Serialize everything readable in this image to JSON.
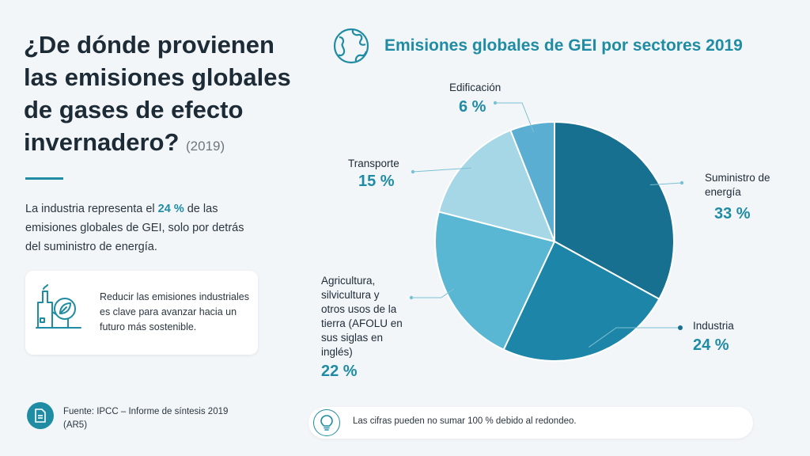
{
  "left": {
    "title": "¿De dónde provienen las emisiones globales de gases de efecto invernadero?",
    "title_year": "(2019)",
    "summary_before": "La industria representa el ",
    "summary_highlight": "24 %",
    "summary_after": " de las emisiones globales de GEI, solo por detrás del suministro de energía.",
    "card_text": "Reducir las emisiones industriales es clave para avanzar hacia un futuro más sostenible.",
    "source": "Fuente: IPCC – Informe de síntesis 2019 (AR5)"
  },
  "note": "Las cifras pueden no sumar 100 % debido al redondeo.",
  "colors": {
    "accent": "#1f8ca3",
    "text": "#1d2b36",
    "background": "#f3f6f9"
  },
  "icons": {
    "title_icon": "globe-icon",
    "card_icon": "factory-leaf-icon",
    "source_icon": "document-icon",
    "note_icon": "lightbulb-icon"
  },
  "chart_data": {
    "type": "pie",
    "title": "Emisiones globales de GEI por sectores 2019",
    "slices": [
      {
        "label": "Suministro de energía",
        "value": 33,
        "display": "33 %",
        "color": "#17708f"
      },
      {
        "label": "Industria",
        "value": 24,
        "display": "24 %",
        "color": "#1d86a8"
      },
      {
        "label": "Agricultura, silvicultura y otros usos de la tierra (AFOLU en sus siglas en inglés)",
        "value": 22,
        "display": "22 %",
        "color": "#5ab7d3"
      },
      {
        "label": "Transporte",
        "value": 15,
        "display": "15 %",
        "color": "#a6d7e6"
      },
      {
        "label": "Edificación",
        "value": 6,
        "display": "6 %",
        "color": "#5aaed2"
      }
    ]
  }
}
